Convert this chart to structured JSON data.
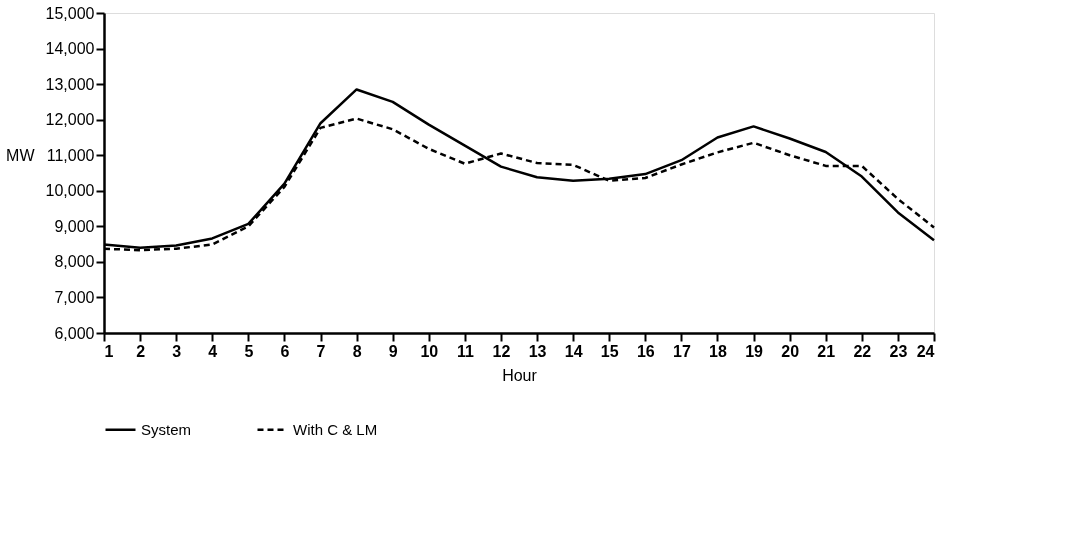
{
  "chart_data": {
    "type": "line",
    "xlabel": "Hour",
    "ylabel": "MW",
    "x": [
      1,
      2,
      3,
      4,
      5,
      6,
      7,
      8,
      9,
      10,
      11,
      12,
      13,
      14,
      15,
      16,
      17,
      18,
      19,
      20,
      21,
      22,
      23,
      24
    ],
    "xlim": [
      1,
      24
    ],
    "xticks": [
      1,
      2,
      3,
      4,
      5,
      6,
      7,
      8,
      9,
      10,
      11,
      12,
      13,
      14,
      15,
      16,
      17,
      18,
      19,
      20,
      21,
      22,
      23,
      24
    ],
    "ylim": [
      6000,
      15000
    ],
    "yticks": [
      {
        "value": 6000,
        "label": "6,000"
      },
      {
        "value": 7000,
        "label": "7,000"
      },
      {
        "value": 8000,
        "label": "8,000"
      },
      {
        "value": 9000,
        "label": "9,000"
      },
      {
        "value": 10000,
        "label": "10,000"
      },
      {
        "value": 11000,
        "label": "11,000"
      },
      {
        "value": 12000,
        "label": "12,000"
      },
      {
        "value": 13000,
        "label": "13,000"
      },
      {
        "value": 14000,
        "label": "14,000"
      },
      {
        "value": 15000,
        "label": "15,000"
      }
    ],
    "grid": false,
    "legend": "bottom",
    "marker": "none",
    "series": [
      {
        "name": "System",
        "color": "#000000",
        "line_style": "solid",
        "values": [
          8490,
          8400,
          8460,
          8660,
          9070,
          10200,
          11900,
          12850,
          12500,
          11860,
          11270,
          10680,
          10380,
          10280,
          10340,
          10470,
          10860,
          11500,
          11810,
          11470,
          11090,
          10400,
          9390,
          8610
        ]
      },
      {
        "name": "With C & LM",
        "color": "#000000",
        "line_style": "dashed",
        "values": [
          8370,
          8330,
          8370,
          8490,
          9000,
          10110,
          11770,
          12030,
          11730,
          11180,
          10760,
          11050,
          10780,
          10730,
          10280,
          10360,
          10740,
          11080,
          11350,
          11000,
          10700,
          10700,
          9770,
          8970
        ]
      }
    ]
  }
}
